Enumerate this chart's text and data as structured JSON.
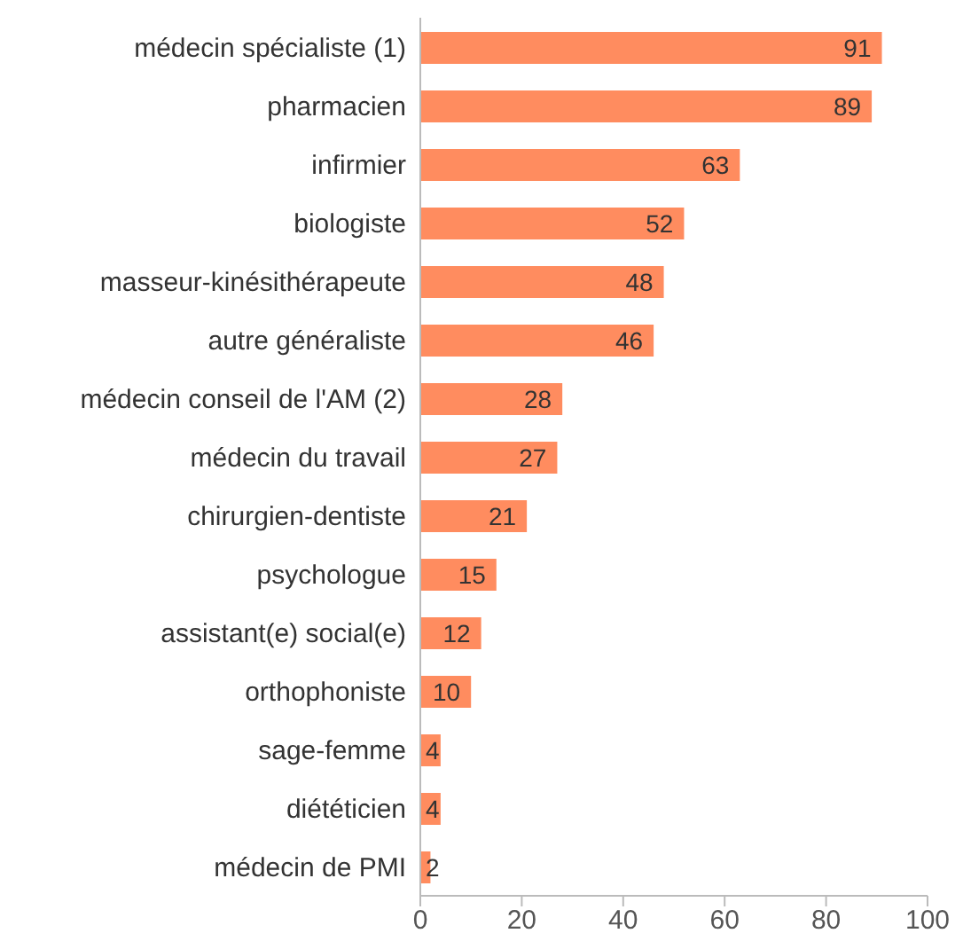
{
  "chart_data": {
    "type": "bar",
    "orientation": "horizontal",
    "categories": [
      "médecin spécialiste (1)",
      "pharmacien",
      "infirmier",
      "biologiste",
      "masseur-kinésithérapeute",
      "autre généraliste",
      "médecin conseil de l'AM (2)",
      "médecin du travail",
      "chirurgien-dentiste",
      "psychologue",
      "assistant(e) social(e)",
      "orthophoniste",
      "sage-femme",
      "diététicien",
      "médecin de PMI"
    ],
    "values": [
      91,
      89,
      63,
      52,
      48,
      46,
      28,
      27,
      21,
      15,
      12,
      10,
      4,
      4,
      2
    ],
    "color": "#ff8c5f",
    "data_labels": true,
    "xlim": [
      0,
      100
    ],
    "xticks": [
      0,
      20,
      40,
      60,
      80,
      100
    ],
    "grid": false
  }
}
